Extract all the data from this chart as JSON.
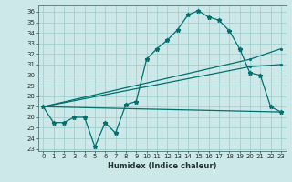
{
  "xlabel": "Humidex (Indice chaleur)",
  "background_color": "#cce8e8",
  "grid_color": "#99cccc",
  "line_color": "#007070",
  "xlim": [
    -0.5,
    23.5
  ],
  "ylim": [
    22.8,
    36.6
  ],
  "yticks": [
    23,
    24,
    25,
    26,
    27,
    28,
    29,
    30,
    31,
    32,
    33,
    34,
    35,
    36
  ],
  "xticks": [
    0,
    1,
    2,
    3,
    4,
    5,
    6,
    7,
    8,
    9,
    10,
    11,
    12,
    13,
    14,
    15,
    16,
    17,
    18,
    19,
    20,
    21,
    22,
    23
  ],
  "curve1_x": [
    0,
    1,
    2,
    3,
    4,
    5,
    6,
    7,
    8,
    9,
    10,
    11,
    12,
    13,
    14,
    15,
    16,
    17,
    18,
    19,
    20,
    21,
    22,
    23
  ],
  "curve1_y": [
    27.0,
    25.5,
    25.5,
    26.0,
    26.0,
    23.2,
    25.5,
    24.5,
    27.2,
    27.5,
    31.5,
    32.5,
    33.3,
    34.3,
    35.7,
    36.1,
    35.5,
    35.2,
    34.2,
    32.5,
    30.2,
    30.0,
    27.0,
    26.5
  ],
  "line1_x": [
    0,
    23
  ],
  "line1_y": [
    27.0,
    26.5
  ],
  "line2_x": [
    0,
    20,
    23
  ],
  "line2_y": [
    27.0,
    31.5,
    32.5
  ],
  "line3_x": [
    0,
    20,
    23
  ],
  "line3_y": [
    27.0,
    30.8,
    31.0
  ],
  "xlabel_fontsize": 6,
  "tick_fontsize": 5
}
